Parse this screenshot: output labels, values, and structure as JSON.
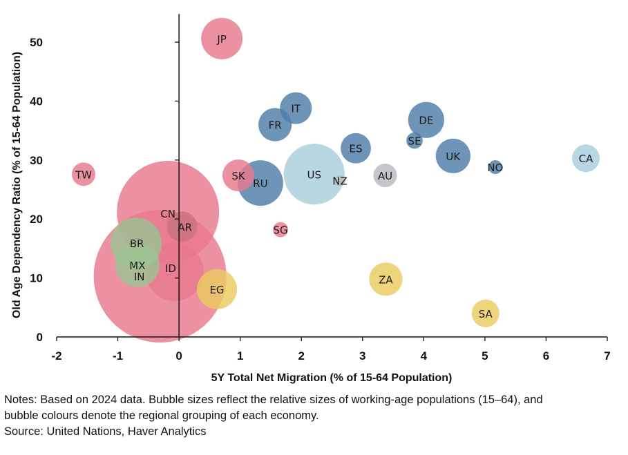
{
  "chart_data": {
    "type": "scatter",
    "subtype": "bubble",
    "title": "",
    "xlabel": "5Y Total Net Migration (% of 15-64 Population)",
    "ylabel": "Old Age Dependency Ratio (% of 15-64 Population)",
    "xlim": [
      -2,
      7
    ],
    "ylim": [
      0,
      55
    ],
    "x_ticks": [
      "-2",
      "-1",
      "0",
      "1",
      "2",
      "3",
      "4",
      "5",
      "6",
      "7"
    ],
    "y_ticks": [
      "0",
      "10",
      "20",
      "30",
      "40",
      "50"
    ],
    "grid": false,
    "legend": "none",
    "size_meaning": "Relative working-age population (15-64), area-proportional index",
    "groups": {
      "asia_em": {
        "color": "#E8798E"
      },
      "europe_na": {
        "color": "#4E7CA8"
      },
      "north_america_light": {
        "color": "#A8CEDC"
      },
      "oceania": {
        "color": "#B8B9BE"
      },
      "latam": {
        "color": "#9CC394"
      },
      "africa_me": {
        "color": "#EACB60"
      }
    },
    "points": [
      {
        "label": "IN",
        "x": -0.31,
        "y": 10.3,
        "size": 92.2,
        "group": "asia_em"
      },
      {
        "label": "CN",
        "x": -0.18,
        "y": 21.2,
        "size": 54.8,
        "group": "asia_em"
      },
      {
        "label": "US",
        "x": 2.21,
        "y": 27.6,
        "size": 19.4,
        "group": "north_america_light"
      },
      {
        "label": "ID",
        "x": -0.07,
        "y": 11.0,
        "size": 17.6,
        "group": "asia_em"
      },
      {
        "label": "BR",
        "x": -0.7,
        "y": 15.9,
        "size": 13.7,
        "group": "latam"
      },
      {
        "label": "RU",
        "x": 1.33,
        "y": 26.1,
        "size": 10.9,
        "group": "europe_na"
      },
      {
        "label": "MX",
        "x": -0.68,
        "y": 12.2,
        "size": 10.2,
        "group": "latam"
      },
      {
        "label": "JP",
        "x": 0.7,
        "y": 50.6,
        "size": 9.0,
        "group": "asia_em"
      },
      {
        "label": "EG",
        "x": 0.62,
        "y": 8.1,
        "size": 8.4,
        "group": "africa_me"
      },
      {
        "label": "DE",
        "x": 4.04,
        "y": 36.8,
        "size": 6.8,
        "group": "europe_na"
      },
      {
        "label": "UK",
        "x": 4.48,
        "y": 30.7,
        "size": 6.3,
        "group": "europe_na"
      },
      {
        "label": "FR",
        "x": 1.57,
        "y": 36.0,
        "size": 5.8,
        "group": "europe_na"
      },
      {
        "label": "ZA",
        "x": 3.38,
        "y": 9.8,
        "size": 5.8,
        "group": "africa_me"
      },
      {
        "label": "IT",
        "x": 1.91,
        "y": 38.8,
        "size": 5.3,
        "group": "europe_na"
      },
      {
        "label": "SK",
        "x": 0.97,
        "y": 27.4,
        "size": 5.3,
        "group": "asia_em"
      },
      {
        "label": "ES",
        "x": 2.89,
        "y": 32.0,
        "size": 4.8,
        "group": "europe_na"
      },
      {
        "label": "AR",
        "x": 0.05,
        "y": 18.7,
        "size": 4.8,
        "group": "latam_ar"
      },
      {
        "label": "CA",
        "x": 6.65,
        "y": 30.3,
        "size": 4.0,
        "group": "north_america_light"
      },
      {
        "label": "SA",
        "x": 5.01,
        "y": 4.0,
        "size": 4.0,
        "group": "africa_me"
      },
      {
        "label": "AU",
        "x": 3.37,
        "y": 27.4,
        "size": 2.9,
        "group": "oceania"
      },
      {
        "label": "TW",
        "x": -1.56,
        "y": 27.6,
        "size": 2.9,
        "group": "asia_em"
      },
      {
        "label": "SE",
        "x": 3.85,
        "y": 33.3,
        "size": 1.4,
        "group": "europe_na"
      },
      {
        "label": "SG",
        "x": 1.66,
        "y": 18.2,
        "size": 1.2,
        "group": "asia_em"
      },
      {
        "label": "NO",
        "x": 5.17,
        "y": 28.8,
        "size": 1.0,
        "group": "europe_na"
      },
      {
        "label": "NZ",
        "x": 2.63,
        "y": 26.5,
        "size": 0.64,
        "group": "oceania"
      }
    ]
  },
  "notes": {
    "line1": "Notes: Based on 2024 data. Bubble sizes reflect the relative sizes of working-age populations (15–64), and",
    "line2": "bubble colours denote the regional grouping of each economy.",
    "source": "Source: United Nations, Haver Analytics"
  }
}
